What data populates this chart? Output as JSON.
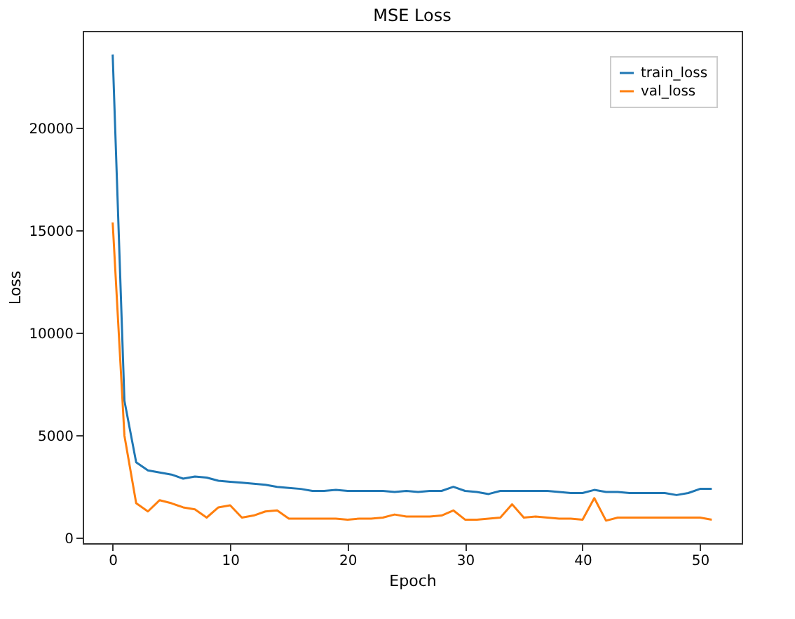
{
  "chart_data": {
    "type": "line",
    "title": "MSE Loss",
    "xlabel": "Epoch",
    "ylabel": "Loss",
    "x": [
      0,
      1,
      2,
      3,
      4,
      5,
      6,
      7,
      8,
      9,
      10,
      11,
      12,
      13,
      14,
      15,
      16,
      17,
      18,
      19,
      20,
      21,
      22,
      23,
      24,
      25,
      26,
      27,
      28,
      29,
      30,
      31,
      32,
      33,
      34,
      35,
      36,
      37,
      38,
      39,
      40,
      41,
      42,
      43,
      44,
      45,
      46,
      47,
      48,
      49,
      50,
      51
    ],
    "xlim": [
      -2.55,
      53.55
    ],
    "xticks": [
      0,
      10,
      20,
      30,
      40,
      50
    ],
    "ylim": [
      -250,
      24750
    ],
    "yticks": [
      0,
      5000,
      10000,
      15000,
      20000
    ],
    "legend": "top right",
    "grid": false,
    "line_style": "solid",
    "marker": "none",
    "series": [
      {
        "name": "train_loss",
        "color": "#1f77b4",
        "values": [
          23600,
          6700,
          3700,
          3300,
          3200,
          3100,
          2900,
          3000,
          2950,
          2800,
          2750,
          2700,
          2650,
          2600,
          2500,
          2450,
          2400,
          2300,
          2300,
          2350,
          2300,
          2300,
          2300,
          2300,
          2250,
          2300,
          2250,
          2300,
          2300,
          2500,
          2300,
          2250,
          2150,
          2300,
          2300,
          2300,
          2300,
          2300,
          2250,
          2200,
          2200,
          2350,
          2250,
          2250,
          2200,
          2200,
          2200,
          2200,
          2100,
          2200,
          2400,
          2400
        ]
      },
      {
        "name": "val_loss",
        "color": "#ff7f0e",
        "values": [
          15400,
          5000,
          1700,
          1300,
          1850,
          1700,
          1500,
          1400,
          1000,
          1500,
          1600,
          1000,
          1100,
          1300,
          1350,
          950,
          950,
          950,
          950,
          950,
          900,
          950,
          950,
          1000,
          1150,
          1050,
          1050,
          1050,
          1100,
          1350,
          900,
          900,
          950,
          1000,
          1650,
          1000,
          1050,
          1000,
          950,
          950,
          900,
          1950,
          850,
          1000,
          1000,
          1000,
          1000,
          1000,
          1000,
          1000,
          1000,
          900
        ]
      }
    ]
  }
}
